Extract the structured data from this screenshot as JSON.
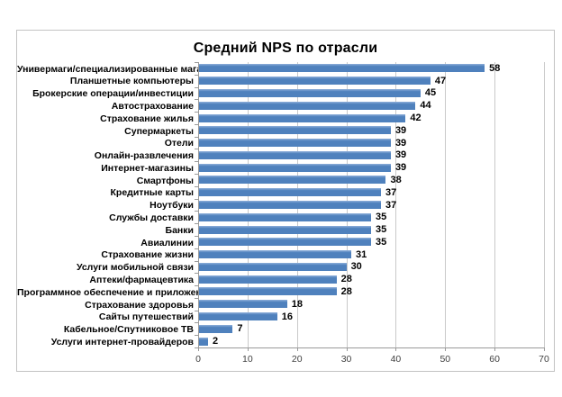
{
  "chart_data": {
    "type": "bar",
    "orientation": "horizontal",
    "title": "Средний NPS по отрасли",
    "categories": [
      "Универмаги/специализированные магазины",
      "Планшетные компьютеры",
      "Брокерские операции/инвестиции",
      "Автострахование",
      "Страхование жилья",
      "Супермаркеты",
      "Отели",
      "Онлайн-развлечения",
      "Интернет-магазины",
      "Смартфоны",
      "Кредитные карты",
      "Ноутбуки",
      "Службы доставки",
      "Банки",
      "Авиалинии",
      "Страхование жизни",
      "Услуги мобильной связи",
      "Аптеки/фармацевтика",
      "Программное обеспечение и приложения",
      "Страхование здоровья",
      "Сайты путешествий",
      "Кабельное/Спутниковое ТВ",
      "Услуги интернет-провайдеров"
    ],
    "values": [
      58,
      47,
      45,
      44,
      42,
      39,
      39,
      39,
      39,
      38,
      37,
      37,
      35,
      35,
      35,
      31,
      30,
      28,
      28,
      18,
      16,
      7,
      2
    ],
    "xlabel": "",
    "ylabel": "",
    "xlim": [
      0,
      70
    ],
    "x_ticks": [
      0,
      10,
      20,
      30,
      40,
      50,
      60,
      70
    ],
    "data_labels": true,
    "legend": "none",
    "grid": "vertical",
    "colors": {
      "bar": "#4F81BD",
      "bar_top_highlight": "#8FB0DA",
      "gridline": "#C9C9C9",
      "axis": "#9A9A9A",
      "label_text": "#000000",
      "tick_text": "#3F3F3F",
      "frame_border": "#C3C3C3"
    }
  }
}
